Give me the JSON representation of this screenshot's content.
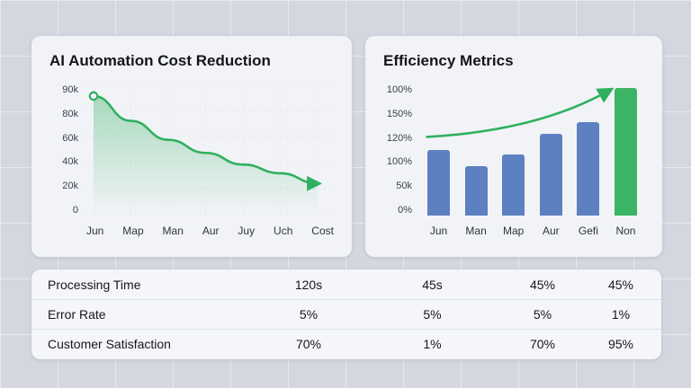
{
  "chart_data": [
    {
      "type": "line",
      "title": "AI Automation Cost Reduction",
      "categories": [
        "Jun",
        "Map",
        "Man",
        "Aur",
        "Juy",
        "Uch",
        "Cost"
      ],
      "values": [
        82,
        65,
        52,
        43,
        35,
        29,
        22
      ],
      "unit": "k",
      "ylim": [
        0,
        90
      ],
      "y_ticks": [
        "90k",
        "80k",
        "60k",
        "40k",
        "20k",
        "0"
      ],
      "line_color": "#2fb05f",
      "area_fill": true,
      "start_marker": true,
      "end_arrow": true,
      "grid": "faint-dotted",
      "legend_position": "none"
    },
    {
      "type": "bar",
      "title": "Efficiency Metrics",
      "categories": [
        "Jun",
        "Man",
        "Map",
        "Aur",
        "Gefi",
        "Non"
      ],
      "values": [
        95,
        71,
        89,
        119,
        136,
        185
      ],
      "ylim": [
        0,
        190
      ],
      "y_ticks": [
        "100%",
        "150%",
        "120%",
        "100%",
        "50k",
        "0%"
      ],
      "bar_colors": [
        "#5d80c1",
        "#5d80c1",
        "#5d80c1",
        "#5d80c1",
        "#5d80c1",
        "#3bb464"
      ],
      "trend_arrow_color": "#2fb05f",
      "grid": "off",
      "legend_position": "none"
    }
  ],
  "table": {
    "rows": [
      {
        "label": "Processing Time",
        "values": [
          "120s",
          "45s",
          "45%",
          "45%"
        ]
      },
      {
        "label": "Error Rate",
        "values": [
          "5%",
          "5%",
          "5%",
          "1%"
        ]
      },
      {
        "label": "Customer Satisfaction",
        "values": [
          "70%",
          "1%",
          "70%",
          "95%"
        ]
      }
    ]
  }
}
